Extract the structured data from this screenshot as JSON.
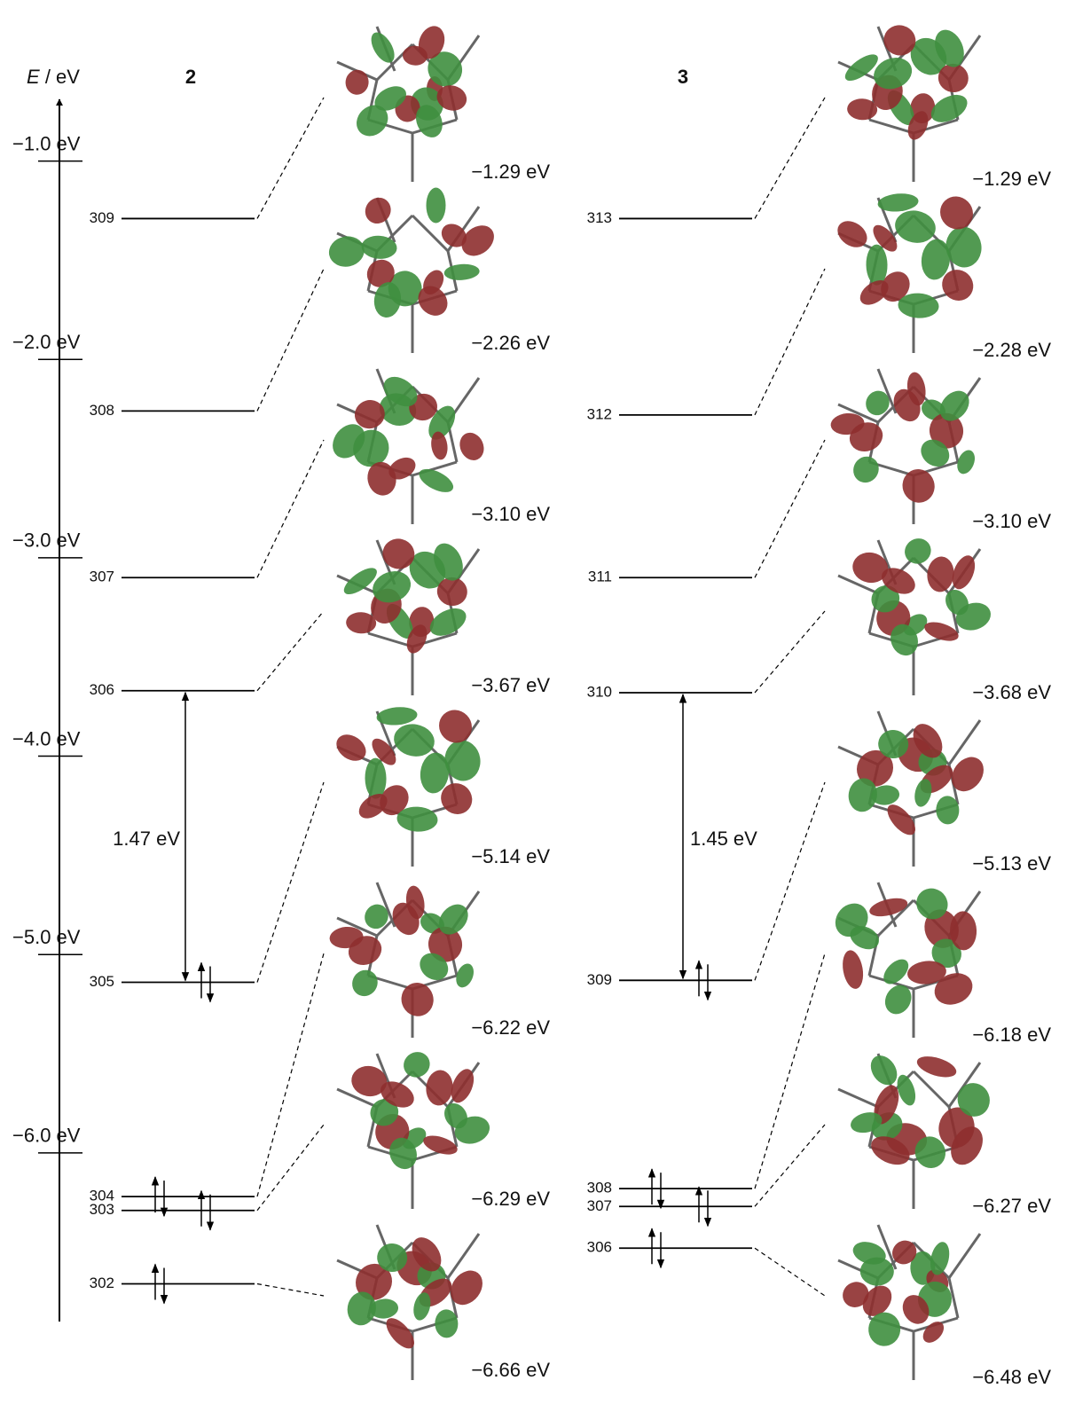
{
  "chart_data": {
    "type": "energy-level",
    "axis_label": {
      "symbol": "E",
      "unit": "/ eV"
    },
    "ylim": [
      -6.85,
      -0.68
    ],
    "yticks": [
      {
        "value": -1.0,
        "label": "−1.0 eV"
      },
      {
        "value": -2.0,
        "label": "−2.0 eV"
      },
      {
        "value": -3.0,
        "label": "−3.0 eV"
      },
      {
        "value": -4.0,
        "label": "−4.0 eV"
      },
      {
        "value": -5.0,
        "label": "−5.0 eV"
      },
      {
        "value": -6.0,
        "label": "−6.0 eV"
      }
    ],
    "series": [
      {
        "name": "2",
        "orbitals": [
          "309",
          "308",
          "307",
          "306",
          "305",
          "304",
          "303",
          "302"
        ],
        "values": [
          -1.29,
          -2.26,
          -3.1,
          -3.67,
          -5.14,
          -6.22,
          -6.29,
          -6.66
        ],
        "value_labels": [
          "−1.29 eV",
          "−2.26 eV",
          "−3.10 eV",
          "−3.67 eV",
          "−5.14 eV",
          "−6.22 eV",
          "−6.29 eV",
          "−6.66 eV"
        ],
        "occupied": [
          false,
          false,
          false,
          false,
          true,
          true,
          true,
          true
        ],
        "gap": {
          "value": 1.47,
          "label": "1.47 eV"
        }
      },
      {
        "name": "3",
        "orbitals": [
          "313",
          "312",
          "311",
          "310",
          "309",
          "308",
          "307",
          "306"
        ],
        "values": [
          -1.29,
          -2.28,
          -3.1,
          -3.68,
          -5.13,
          -6.18,
          -6.27,
          -6.48
        ],
        "value_labels": [
          "−1.29 eV",
          "−2.28 eV",
          "−3.10 eV",
          "−3.68 eV",
          "−5.13 eV",
          "−6.18 eV",
          "−6.27 eV",
          "−6.48 eV"
        ],
        "occupied": [
          false,
          false,
          false,
          false,
          true,
          true,
          true,
          true
        ],
        "gap": {
          "value": 1.45,
          "label": "1.45 eV"
        }
      }
    ]
  }
}
